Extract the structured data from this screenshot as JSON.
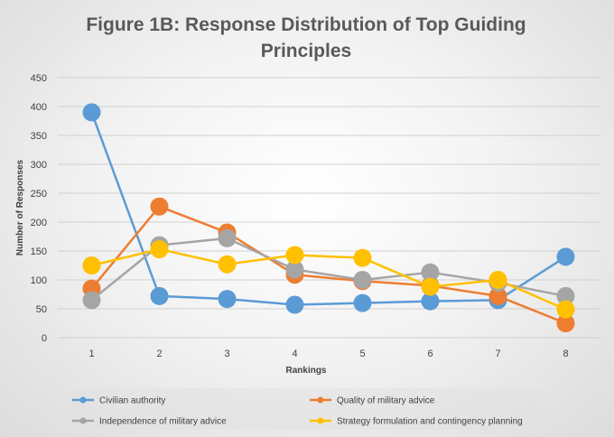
{
  "chart_data": {
    "type": "line",
    "title_line1": "Figure 1B: Response Distribution of Top Guiding",
    "title_line2": "Principles",
    "xlabel": "Rankings",
    "ylabel": "Number of Responses",
    "x": [
      1,
      2,
      3,
      4,
      5,
      6,
      7,
      8
    ],
    "ylim": [
      0,
      450
    ],
    "yticks": [
      0,
      50,
      100,
      150,
      200,
      250,
      300,
      350,
      400,
      450
    ],
    "grid": true,
    "legend_position": "bottom",
    "series": [
      {
        "name": "Civilian authority",
        "color": "#5B9BD5",
        "values": [
          390,
          72,
          67,
          57,
          60,
          63,
          65,
          140
        ]
      },
      {
        "name": "Quality of military advice",
        "color": "#ED7D31",
        "values": [
          85,
          227,
          182,
          109,
          98,
          90,
          72,
          25
        ]
      },
      {
        "name": "Independence of military advice",
        "color": "#A5A5A5",
        "values": [
          65,
          160,
          172,
          118,
          100,
          113,
          95,
          72
        ]
      },
      {
        "name": "Strategy formulation and contingency planning",
        "color": "#FFC000",
        "values": [
          125,
          153,
          127,
          143,
          138,
          88,
          100,
          49
        ]
      }
    ]
  }
}
